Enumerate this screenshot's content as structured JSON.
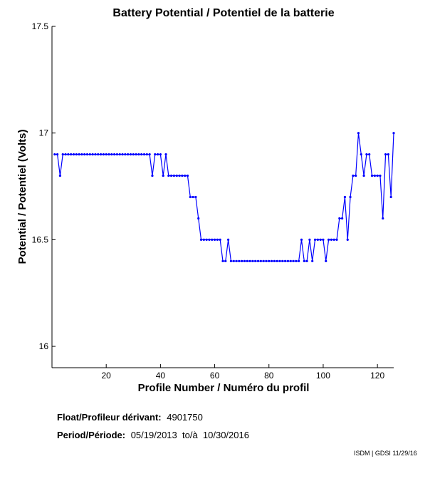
{
  "chart_data": {
    "type": "line",
    "title": "Battery Potential / Potentiel de la batterie",
    "xlabel": "Profile Number / Numéro du profil",
    "ylabel": "Potential / Potentiel (Volts)",
    "xlim": [
      0,
      126
    ],
    "ylim": [
      15.9,
      17.5
    ],
    "xticks": [
      20,
      40,
      60,
      80,
      100,
      120
    ],
    "yticks": [
      16,
      16.5,
      17,
      17.5
    ],
    "ytick_labels": [
      "16",
      "16.5",
      "17",
      "17.5"
    ],
    "grid": false,
    "color": "#0000ff",
    "series": [
      {
        "x": [
          1,
          2,
          3,
          4,
          5,
          6,
          7,
          8,
          9,
          10,
          11,
          12,
          13,
          14,
          15,
          16,
          17,
          18,
          19,
          20,
          21,
          22,
          23,
          24,
          25,
          26,
          27,
          28,
          29,
          30,
          31,
          32,
          33,
          34,
          35,
          36,
          37,
          38,
          39,
          40,
          41,
          42,
          43,
          44,
          45,
          46,
          47,
          48,
          49,
          50,
          51,
          52,
          53,
          54,
          55,
          56,
          57,
          58,
          59,
          60,
          61,
          62,
          63,
          64,
          65,
          66,
          67,
          68,
          69,
          70,
          71,
          72,
          73,
          74,
          75,
          76,
          77,
          78,
          79,
          80,
          81,
          82,
          83,
          84,
          85,
          86,
          87,
          88,
          89,
          90,
          91,
          92,
          93,
          94,
          95,
          96,
          97,
          98,
          99,
          100,
          101,
          102,
          103,
          104,
          105,
          106,
          107,
          108,
          109,
          110,
          111,
          112,
          113,
          114,
          115,
          116,
          117,
          118,
          119,
          120,
          121,
          122,
          123,
          124,
          125,
          126
        ],
        "y": [
          16.9,
          16.9,
          16.8,
          16.9,
          16.9,
          16.9,
          16.9,
          16.9,
          16.9,
          16.9,
          16.9,
          16.9,
          16.9,
          16.9,
          16.9,
          16.9,
          16.9,
          16.9,
          16.9,
          16.9,
          16.9,
          16.9,
          16.9,
          16.9,
          16.9,
          16.9,
          16.9,
          16.9,
          16.9,
          16.9,
          16.9,
          16.9,
          16.9,
          16.9,
          16.9,
          16.9,
          16.8,
          16.9,
          16.9,
          16.9,
          16.8,
          16.9,
          16.8,
          16.8,
          16.8,
          16.8,
          16.8,
          16.8,
          16.8,
          16.8,
          16.7,
          16.7,
          16.7,
          16.6,
          16.5,
          16.5,
          16.5,
          16.5,
          16.5,
          16.5,
          16.5,
          16.5,
          16.4,
          16.4,
          16.5,
          16.4,
          16.4,
          16.4,
          16.4,
          16.4,
          16.4,
          16.4,
          16.4,
          16.4,
          16.4,
          16.4,
          16.4,
          16.4,
          16.4,
          16.4,
          16.4,
          16.4,
          16.4,
          16.4,
          16.4,
          16.4,
          16.4,
          16.4,
          16.4,
          16.4,
          16.4,
          16.5,
          16.4,
          16.4,
          16.5,
          16.4,
          16.5,
          16.5,
          16.5,
          16.5,
          16.4,
          16.5,
          16.5,
          16.5,
          16.5,
          16.6,
          16.6,
          16.7,
          16.5,
          16.7,
          16.8,
          16.8,
          17.0,
          16.9,
          16.8,
          16.9,
          16.9,
          16.8,
          16.8,
          16.8,
          16.8,
          16.6,
          16.9,
          16.9,
          16.7,
          17.0
        ]
      }
    ]
  },
  "info": {
    "float_label": "Float/Profileur dérivant:",
    "float_value": "4901750",
    "period_label": "Period/Période:",
    "period_value": "05/19/2013  to/à  10/30/2016"
  },
  "credit": "ISDM | GDSI 11/29/16"
}
